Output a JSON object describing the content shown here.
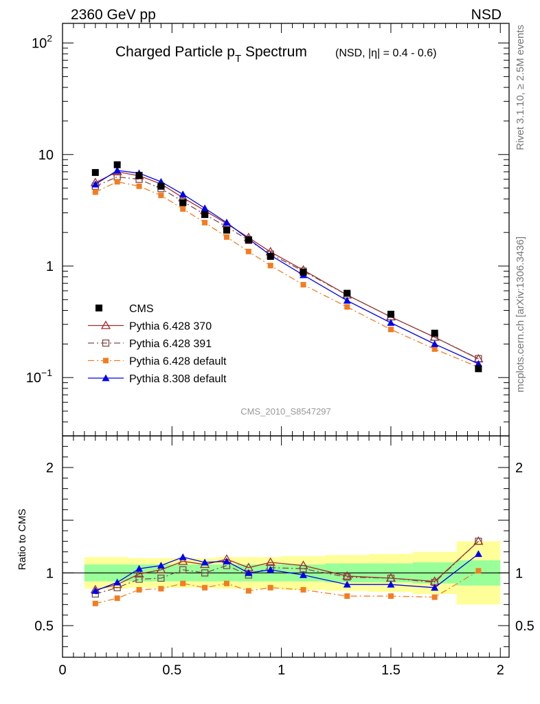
{
  "header": {
    "left": "2360 GeV pp",
    "right": "NSD"
  },
  "side_labels": {
    "rivet": "Rivet 3.1.10, ≥ 2.5M events",
    "mcplots": "mcplots.cern.ch [arXiv:1306.3436]"
  },
  "chart_data": {
    "type": "line",
    "title_main": "Charged Particle p",
    "title_sub": "T",
    "title_tail": " Spectrum",
    "title_extra": "(NSD, |η| = 0.4 - 0.6)",
    "watermark": "CMS_2010_S8547297",
    "x_ticks": [
      "0",
      "0.5",
      "1",
      "1.5",
      "2"
    ],
    "xlim": [
      0,
      2.04
    ],
    "main": {
      "yscale": "log",
      "ylim": [
        0.03,
        150
      ],
      "y_ticks": [
        {
          "value": 0.1,
          "base": "10",
          "exp": "−1"
        },
        {
          "value": 1,
          "base": "1",
          "exp": ""
        },
        {
          "value": 10,
          "base": "10",
          "exp": ""
        },
        {
          "value": 100,
          "base": "10",
          "exp": "2"
        }
      ]
    },
    "ratio": {
      "ylabel": "Ratio to CMS",
      "ylim": [
        0.2,
        2.3
      ],
      "y_ticks": [
        "0.5",
        "1",
        "2"
      ],
      "y_tick_values": [
        0.5,
        1,
        2
      ],
      "bands": [
        {
          "x0": 0.1,
          "x1": 0.2,
          "green": [
            0.92,
            1.08
          ],
          "yellow": [
            0.85,
            1.15
          ]
        },
        {
          "x0": 0.2,
          "x1": 0.3,
          "green": [
            0.92,
            1.08
          ],
          "yellow": [
            0.85,
            1.15
          ]
        },
        {
          "x0": 0.3,
          "x1": 0.4,
          "green": [
            0.92,
            1.08
          ],
          "yellow": [
            0.86,
            1.14
          ]
        },
        {
          "x0": 0.4,
          "x1": 0.5,
          "green": [
            0.92,
            1.08
          ],
          "yellow": [
            0.86,
            1.14
          ]
        },
        {
          "x0": 0.5,
          "x1": 0.6,
          "green": [
            0.92,
            1.08
          ],
          "yellow": [
            0.86,
            1.14
          ]
        },
        {
          "x0": 0.6,
          "x1": 0.7,
          "green": [
            0.92,
            1.08
          ],
          "yellow": [
            0.86,
            1.14
          ]
        },
        {
          "x0": 0.7,
          "x1": 0.8,
          "green": [
            0.92,
            1.08
          ],
          "yellow": [
            0.85,
            1.15
          ]
        },
        {
          "x0": 0.8,
          "x1": 0.9,
          "green": [
            0.92,
            1.08
          ],
          "yellow": [
            0.85,
            1.15
          ]
        },
        {
          "x0": 0.9,
          "x1": 1.0,
          "green": [
            0.92,
            1.08
          ],
          "yellow": [
            0.85,
            1.15
          ]
        },
        {
          "x0": 1.0,
          "x1": 1.2,
          "green": [
            0.92,
            1.08
          ],
          "yellow": [
            0.84,
            1.16
          ]
        },
        {
          "x0": 1.2,
          "x1": 1.4,
          "green": [
            0.91,
            1.09
          ],
          "yellow": [
            0.83,
            1.17
          ]
        },
        {
          "x0": 1.4,
          "x1": 1.6,
          "green": [
            0.91,
            1.09
          ],
          "yellow": [
            0.82,
            1.18
          ]
        },
        {
          "x0": 1.6,
          "x1": 1.8,
          "green": [
            0.9,
            1.1
          ],
          "yellow": [
            0.8,
            1.2
          ]
        },
        {
          "x0": 1.8,
          "x1": 2.0,
          "green": [
            0.88,
            1.12
          ],
          "yellow": [
            0.7,
            1.3
          ]
        }
      ]
    },
    "x": [
      0.15,
      0.25,
      0.35,
      0.45,
      0.55,
      0.65,
      0.75,
      0.85,
      0.95,
      1.1,
      1.3,
      1.5,
      1.7,
      1.9
    ],
    "data": {
      "name": "CMS",
      "values": [
        6.9,
        8.1,
        6.5,
        5.2,
        3.7,
        2.9,
        2.1,
        1.72,
        1.22,
        0.88,
        0.57,
        0.37,
        0.25,
        0.12
      ]
    },
    "series": [
      {
        "name": "Pythia 6.428 370",
        "color": "#a52a2a",
        "dash": "",
        "marker": "triangle-open",
        "values": [
          5.6,
          7.0,
          6.45,
          5.45,
          4.1,
          3.15,
          2.4,
          1.8,
          1.34,
          0.92,
          0.55,
          0.35,
          0.23,
          0.147
        ],
        "ratio": [
          0.84,
          0.89,
          0.99,
          1.03,
          1.11,
          1.08,
          1.13,
          1.05,
          1.1,
          1.07,
          0.97,
          0.95,
          0.92,
          1.3
        ]
      },
      {
        "name": "Pythia 6.428 391",
        "color": "#7b4a4a",
        "dash": "9,4,2,4",
        "marker": "square-open",
        "values": [
          5.2,
          6.3,
          6.0,
          4.95,
          3.8,
          2.9,
          2.25,
          1.7,
          1.28,
          0.9,
          0.55,
          0.35,
          0.23,
          0.148
        ],
        "ratio": [
          0.8,
          0.86,
          0.94,
          0.95,
          1.03,
          1.0,
          1.07,
          0.98,
          1.05,
          1.04,
          0.96,
          0.95,
          0.91,
          1.3
        ]
      },
      {
        "name": "Pythia 6.428 default",
        "color": "#f47c20",
        "dash": "9,4,2,4",
        "marker": "square-filled",
        "values": [
          4.6,
          5.7,
          5.2,
          4.3,
          3.25,
          2.45,
          1.82,
          1.35,
          1.01,
          0.68,
          0.43,
          0.27,
          0.18,
          0.124
        ],
        "ratio": [
          0.71,
          0.76,
          0.84,
          0.85,
          0.9,
          0.86,
          0.9,
          0.83,
          0.86,
          0.84,
          0.78,
          0.78,
          0.77,
          1.02
        ]
      },
      {
        "name": "Pythia 8.308 default",
        "color": "#0000ee",
        "dash": "",
        "marker": "triangle-filled",
        "values": [
          5.4,
          7.2,
          6.8,
          5.7,
          4.4,
          3.3,
          2.45,
          1.75,
          1.25,
          0.83,
          0.49,
          0.31,
          0.2,
          0.133
        ],
        "ratio": [
          0.83,
          0.91,
          1.04,
          1.07,
          1.15,
          1.1,
          1.11,
          1.0,
          1.03,
          0.98,
          0.89,
          0.89,
          0.86,
          1.18
        ]
      }
    ],
    "legend_position": "bottom-left"
  }
}
